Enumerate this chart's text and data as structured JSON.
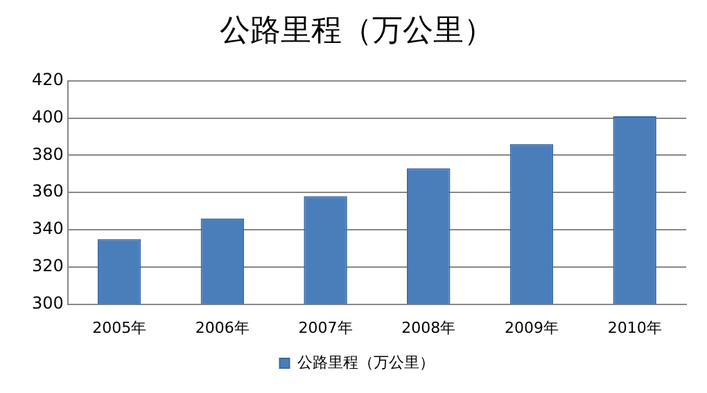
{
  "chart_data": {
    "type": "bar",
    "title": "公路里程（万公里）",
    "categories": [
      "2005年",
      "2006年",
      "2007年",
      "2008年",
      "2009年",
      "2010年"
    ],
    "series": [
      {
        "name": "公路里程（万公里）",
        "color": "#4a7ebb",
        "values": [
          335,
          346,
          358,
          373,
          386,
          401
        ]
      }
    ],
    "ylim": [
      300,
      420
    ],
    "yticks": [
      300,
      320,
      340,
      360,
      380,
      400,
      420
    ],
    "grid": "y",
    "legend": "bottom"
  }
}
